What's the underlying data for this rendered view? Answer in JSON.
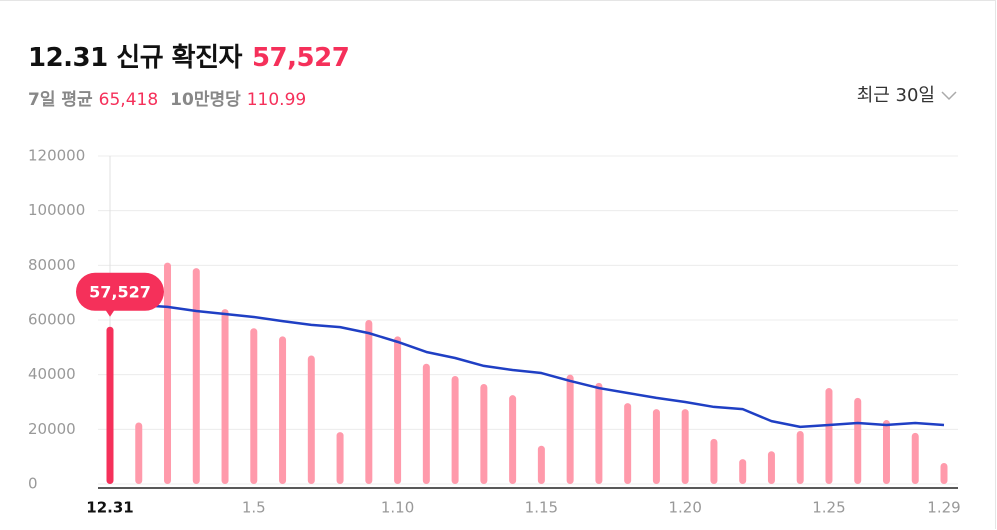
{
  "chart_data": {
    "type": "bar",
    "title": "12.31 신규 확진자",
    "stats": [
      {
        "label": "7일 평균",
        "value": "65,418"
      },
      {
        "label": "10만명당",
        "value": "110.99"
      }
    ],
    "range_selector": "최근 30일",
    "categories": [
      "12.31",
      null,
      null,
      null,
      null,
      "1.5",
      null,
      null,
      null,
      null,
      "1.10",
      null,
      null,
      null,
      null,
      "1.15",
      null,
      null,
      null,
      null,
      "1.20",
      null,
      null,
      null,
      null,
      "1.25",
      null,
      null,
      null,
      "1.29"
    ],
    "selected": 0,
    "selected_color": "#f5305a",
    "series": [
      {
        "type": "bar",
        "color": "#ff9aab",
        "values": [
          57527,
          22500,
          81000,
          79000,
          64000,
          57000,
          54000,
          47000,
          19000,
          60000,
          54000,
          44000,
          39500,
          36600,
          32500,
          14000,
          40000,
          37000,
          29600,
          27400,
          27400,
          16500,
          9100,
          12000,
          19400,
          35100,
          31500,
          23400,
          18700,
          7700
        ],
        "value_labels": [
          "57,527",
          null,
          null,
          null,
          null,
          null,
          null,
          null,
          null,
          null,
          null,
          null,
          null,
          null,
          null,
          null,
          null,
          null,
          null,
          null,
          null,
          null,
          null,
          null,
          null,
          null,
          null,
          null,
          null,
          null
        ]
      },
      {
        "type": "line",
        "color": "#1f3fc4",
        "values": [
          65418,
          65500,
          64800,
          63300,
          62200,
          61100,
          59600,
          58200,
          57400,
          55200,
          52000,
          48300,
          46100,
          43200,
          41700,
          40600,
          37700,
          35100,
          33300,
          31500,
          30000,
          28200,
          27400,
          23000,
          20900,
          21600,
          22300,
          21600,
          22300,
          21600
        ]
      }
    ],
    "ylim": [
      0,
      120000
    ],
    "yticks": [
      0,
      20000,
      40000,
      60000,
      80000,
      100000,
      120000
    ],
    "grid": true
  }
}
